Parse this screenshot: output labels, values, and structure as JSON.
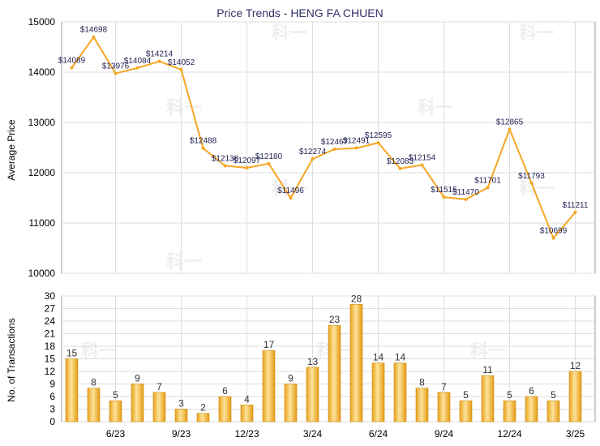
{
  "chart_data": [
    {
      "type": "line",
      "title": "Price Trends - HENG FA CHUEN",
      "xlabel": "",
      "ylabel": "Average Price",
      "ylim": [
        10000,
        15000
      ],
      "yticks": [
        "10000",
        "11000",
        "12000",
        "13000",
        "14000",
        "15000"
      ],
      "series": [
        {
          "values": [
            14089,
            14698,
            13976,
            14084,
            14214,
            14052,
            12488,
            12138,
            12097,
            12180,
            11496,
            12274,
            12467,
            12491,
            12595,
            12083,
            12154,
            11515,
            11470,
            11701,
            12865,
            11793,
            10699,
            11211
          ],
          "labels": [
            "$14089",
            "$14698",
            "$13976",
            "$14084",
            "$14214",
            "$14052",
            "$12488",
            "$12138",
            "$12097",
            "$12180",
            "$11496",
            "$12274",
            "$12467",
            "$12491",
            "$12595",
            "$12083",
            "$12154",
            "$11515",
            "$11470",
            "$11701",
            "$12865",
            "$11793",
            "$10699",
            "$11211"
          ]
        }
      ],
      "grid": true,
      "line_color": "#f5a623"
    },
    {
      "type": "bar",
      "xlabel": "",
      "ylabel": "No. of Transactions",
      "ylim": [
        0,
        30
      ],
      "yticks": [
        "0",
        "3",
        "6",
        "9",
        "12",
        "15",
        "18",
        "21",
        "24",
        "27",
        "30"
      ],
      "x_tick_labels": [
        "6/23",
        "9/23",
        "12/23",
        "3/24",
        "6/24",
        "9/24",
        "12/24",
        "3/25"
      ],
      "values": [
        15,
        8,
        5,
        9,
        7,
        3,
        2,
        6,
        4,
        17,
        9,
        13,
        23,
        28,
        14,
        14,
        8,
        7,
        5,
        11,
        5,
        6,
        5,
        12
      ],
      "grid": true,
      "bar_color": "#f0b030"
    }
  ],
  "watermark": "科一"
}
